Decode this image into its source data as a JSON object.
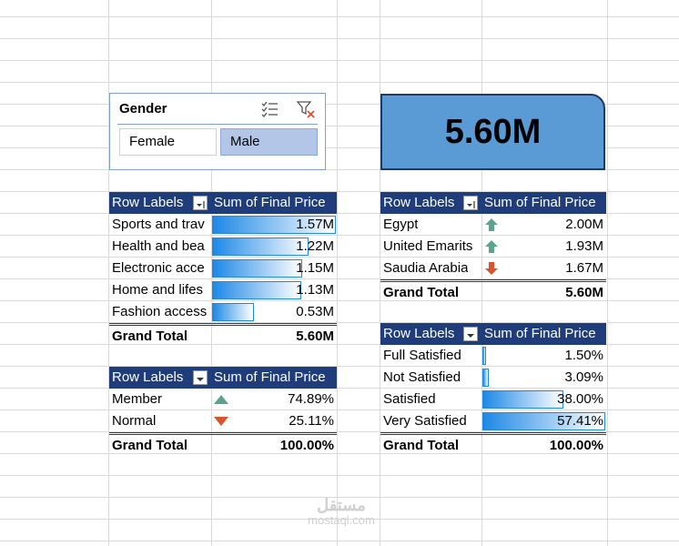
{
  "slicer": {
    "title": "Gender",
    "options": [
      {
        "label": "Female",
        "selected": false
      },
      {
        "label": "Male",
        "selected": true
      }
    ]
  },
  "kpi": {
    "value": "5.60M"
  },
  "category_pivot": {
    "header_label": "Row Labels",
    "header_value": "Sum of Final Price",
    "rows": [
      {
        "label": "Sports and trav",
        "value": "1.57M",
        "bar": 1.0
      },
      {
        "label": "Health and bea",
        "value": "1.22M",
        "bar": 0.78
      },
      {
        "label": "Electronic acce",
        "value": "1.15M",
        "bar": 0.73
      },
      {
        "label": "Home and lifes",
        "value": "1.13M",
        "bar": 0.72
      },
      {
        "label": "Fashion access",
        "value": "0.53M",
        "bar": 0.34
      }
    ],
    "total_label": "Grand Total",
    "total_value": "5.60M"
  },
  "country_pivot": {
    "header_label": "Row Labels",
    "header_value": "Sum of Final Price",
    "rows": [
      {
        "label": "Egypt",
        "value": "2.00M",
        "icon": "arrow-up-icon"
      },
      {
        "label": "United Emarits",
        "value": "1.93M",
        "icon": "arrow-up-icon"
      },
      {
        "label": "Saudia Arabia",
        "value": "1.67M",
        "icon": "arrow-down-icon"
      }
    ],
    "total_label": "Grand Total",
    "total_value": "5.60M"
  },
  "membership_pivot": {
    "header_label": "Row Labels",
    "header_value": "Sum of Final Price",
    "rows": [
      {
        "label": "Member",
        "value": "74.89%",
        "icon": "triangle-up-icon"
      },
      {
        "label": "Normal",
        "value": "25.11%",
        "icon": "triangle-down-icon"
      }
    ],
    "total_label": "Grand Total",
    "total_value": "100.00%"
  },
  "satisfaction_pivot": {
    "header_label": "Row Labels",
    "header_value": "Sum of Final Price",
    "rows": [
      {
        "label": "Full Satisfied",
        "value": "1.50%",
        "bar": 0.026
      },
      {
        "label": "Not Satisfied",
        "value": "3.09%",
        "bar": 0.054
      },
      {
        "label": "Satisfied",
        "value": "38.00%",
        "bar": 0.662
      },
      {
        "label": "Very Satisfied",
        "value": "57.41%",
        "bar": 1.0
      }
    ],
    "total_label": "Grand Total",
    "total_value": "100.00%"
  },
  "colors": {
    "header": "#1f3d7a",
    "kpi_fill": "#5b9bd5",
    "bar": "#1e88e5",
    "up": "#5aa58a",
    "down": "#d9532c"
  },
  "watermark": {
    "main": "مستقل",
    "sub": "mostaql.com"
  }
}
